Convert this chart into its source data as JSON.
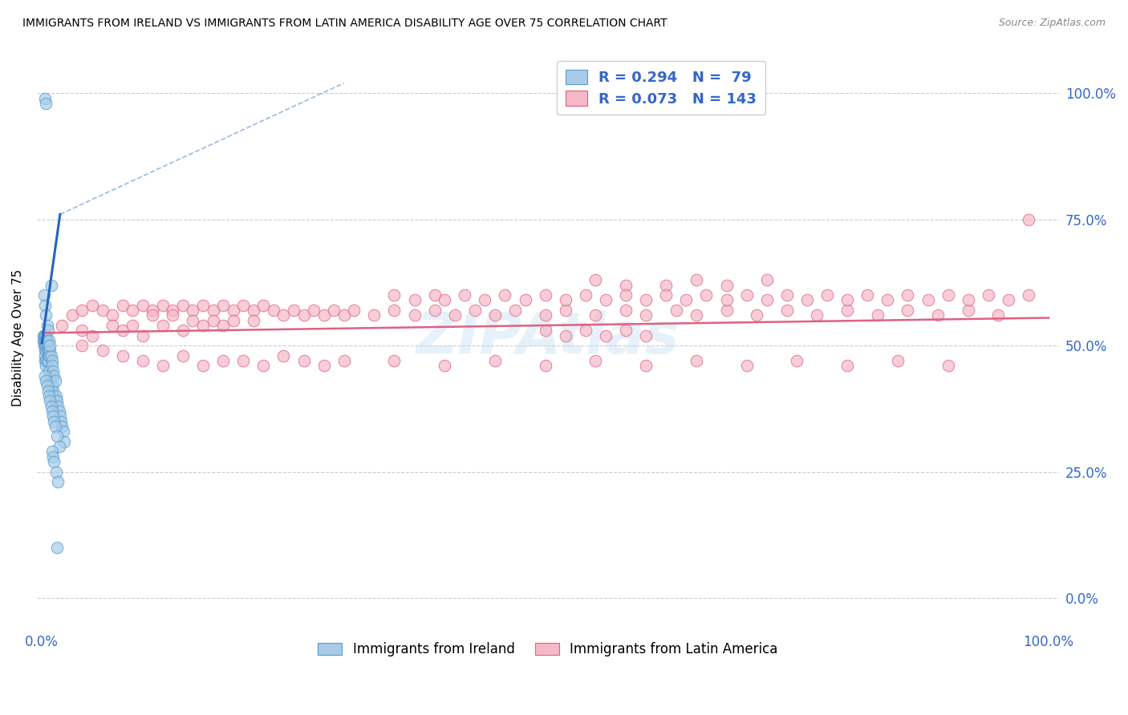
{
  "title": "IMMIGRANTS FROM IRELAND VS IMMIGRANTS FROM LATIN AMERICA DISABILITY AGE OVER 75 CORRELATION CHART",
  "source": "Source: ZipAtlas.com",
  "ylabel": "Disability Age Over 75",
  "legend_labels": [
    "Immigrants from Ireland",
    "Immigrants from Latin America"
  ],
  "legend_R": [
    0.294,
    0.073
  ],
  "legend_N": [
    79,
    143
  ],
  "ireland_color": "#a8cce8",
  "ireland_edge_color": "#5599cc",
  "ireland_line_color": "#2266bb",
  "latin_color": "#f5b8c8",
  "latin_edge_color": "#e06080",
  "latin_line_color": "#e06080",
  "axis_label_color": "#3366cc",
  "ytick_vals": [
    0.0,
    0.25,
    0.5,
    0.75,
    1.0
  ],
  "ytick_labels": [
    "0.0%",
    "25.0%",
    "50.0%",
    "75.0%",
    "100.0%"
  ],
  "xtick_vals": [
    0.0,
    1.0
  ],
  "xtick_labels": [
    "0.0%",
    "100.0%"
  ],
  "xlim": [
    -0.005,
    1.01
  ],
  "ylim": [
    -0.06,
    1.09
  ],
  "ireland_x": [
    0.001,
    0.001,
    0.002,
    0.002,
    0.002,
    0.003,
    0.003,
    0.003,
    0.003,
    0.003,
    0.003,
    0.004,
    0.004,
    0.004,
    0.004,
    0.004,
    0.004,
    0.005,
    0.005,
    0.005,
    0.005,
    0.006,
    0.006,
    0.006,
    0.007,
    0.007,
    0.007,
    0.008,
    0.008,
    0.008,
    0.009,
    0.009,
    0.01,
    0.01,
    0.01,
    0.011,
    0.011,
    0.012,
    0.012,
    0.013,
    0.013,
    0.014,
    0.015,
    0.016,
    0.017,
    0.018,
    0.019,
    0.02,
    0.021,
    0.022,
    0.003,
    0.004,
    0.005,
    0.006,
    0.007,
    0.008,
    0.009,
    0.01,
    0.011,
    0.012,
    0.013,
    0.015,
    0.017,
    0.002,
    0.003,
    0.004,
    0.005,
    0.006,
    0.007,
    0.008,
    0.009,
    0.01,
    0.011,
    0.012,
    0.014,
    0.016,
    0.003,
    0.004,
    0.015
  ],
  "ireland_y": [
    0.52,
    0.51,
    0.52,
    0.51,
    0.5,
    0.52,
    0.51,
    0.5,
    0.49,
    0.48,
    0.47,
    0.52,
    0.51,
    0.5,
    0.49,
    0.47,
    0.46,
    0.51,
    0.5,
    0.49,
    0.47,
    0.5,
    0.49,
    0.47,
    0.49,
    0.48,
    0.45,
    0.49,
    0.48,
    0.43,
    0.48,
    0.44,
    0.47,
    0.46,
    0.42,
    0.45,
    0.41,
    0.44,
    0.4,
    0.43,
    0.39,
    0.4,
    0.39,
    0.38,
    0.37,
    0.36,
    0.35,
    0.34,
    0.33,
    0.31,
    0.44,
    0.43,
    0.42,
    0.41,
    0.4,
    0.39,
    0.38,
    0.37,
    0.36,
    0.35,
    0.34,
    0.32,
    0.3,
    0.6,
    0.58,
    0.56,
    0.54,
    0.53,
    0.51,
    0.5,
    0.62,
    0.29,
    0.28,
    0.27,
    0.25,
    0.23,
    0.99,
    0.98,
    0.1
  ],
  "latin_x": [
    0.02,
    0.03,
    0.04,
    0.04,
    0.05,
    0.05,
    0.06,
    0.07,
    0.07,
    0.08,
    0.08,
    0.09,
    0.09,
    0.1,
    0.1,
    0.11,
    0.11,
    0.12,
    0.12,
    0.13,
    0.13,
    0.14,
    0.14,
    0.15,
    0.15,
    0.16,
    0.16,
    0.17,
    0.17,
    0.18,
    0.18,
    0.19,
    0.19,
    0.2,
    0.21,
    0.21,
    0.22,
    0.23,
    0.24,
    0.25,
    0.26,
    0.27,
    0.28,
    0.29,
    0.3,
    0.31,
    0.33,
    0.35,
    0.37,
    0.39,
    0.41,
    0.43,
    0.45,
    0.47,
    0.5,
    0.52,
    0.55,
    0.58,
    0.6,
    0.63,
    0.65,
    0.68,
    0.71,
    0.74,
    0.77,
    0.8,
    0.83,
    0.86,
    0.89,
    0.92,
    0.95,
    0.98,
    0.04,
    0.06,
    0.08,
    0.1,
    0.12,
    0.14,
    0.16,
    0.18,
    0.2,
    0.22,
    0.24,
    0.26,
    0.28,
    0.3,
    0.35,
    0.4,
    0.45,
    0.5,
    0.55,
    0.6,
    0.65,
    0.7,
    0.75,
    0.8,
    0.85,
    0.9,
    0.55,
    0.58,
    0.62,
    0.65,
    0.68,
    0.72,
    0.35,
    0.37,
    0.39,
    0.4,
    0.42,
    0.44,
    0.46,
    0.48,
    0.5,
    0.52,
    0.54,
    0.56,
    0.58,
    0.6,
    0.62,
    0.64,
    0.66,
    0.68,
    0.7,
    0.72,
    0.74,
    0.76,
    0.78,
    0.8,
    0.82,
    0.84,
    0.86,
    0.88,
    0.9,
    0.92,
    0.94,
    0.96,
    0.98,
    0.5,
    0.52,
    0.54,
    0.56,
    0.58,
    0.6
  ],
  "latin_y": [
    0.54,
    0.56,
    0.57,
    0.53,
    0.58,
    0.52,
    0.57,
    0.56,
    0.54,
    0.58,
    0.53,
    0.57,
    0.54,
    0.58,
    0.52,
    0.57,
    0.56,
    0.58,
    0.54,
    0.57,
    0.56,
    0.58,
    0.53,
    0.57,
    0.55,
    0.58,
    0.54,
    0.57,
    0.55,
    0.58,
    0.54,
    0.57,
    0.55,
    0.58,
    0.57,
    0.55,
    0.58,
    0.57,
    0.56,
    0.57,
    0.56,
    0.57,
    0.56,
    0.57,
    0.56,
    0.57,
    0.56,
    0.57,
    0.56,
    0.57,
    0.56,
    0.57,
    0.56,
    0.57,
    0.56,
    0.57,
    0.56,
    0.57,
    0.56,
    0.57,
    0.56,
    0.57,
    0.56,
    0.57,
    0.56,
    0.57,
    0.56,
    0.57,
    0.56,
    0.57,
    0.56,
    0.75,
    0.5,
    0.49,
    0.48,
    0.47,
    0.46,
    0.48,
    0.46,
    0.47,
    0.47,
    0.46,
    0.48,
    0.47,
    0.46,
    0.47,
    0.47,
    0.46,
    0.47,
    0.46,
    0.47,
    0.46,
    0.47,
    0.46,
    0.47,
    0.46,
    0.47,
    0.46,
    0.63,
    0.62,
    0.62,
    0.63,
    0.62,
    0.63,
    0.6,
    0.59,
    0.6,
    0.59,
    0.6,
    0.59,
    0.6,
    0.59,
    0.6,
    0.59,
    0.6,
    0.59,
    0.6,
    0.59,
    0.6,
    0.59,
    0.6,
    0.59,
    0.6,
    0.59,
    0.6,
    0.59,
    0.6,
    0.59,
    0.6,
    0.59,
    0.6,
    0.59,
    0.6,
    0.59,
    0.6,
    0.59,
    0.6,
    0.53,
    0.52,
    0.53,
    0.52,
    0.53,
    0.52
  ]
}
